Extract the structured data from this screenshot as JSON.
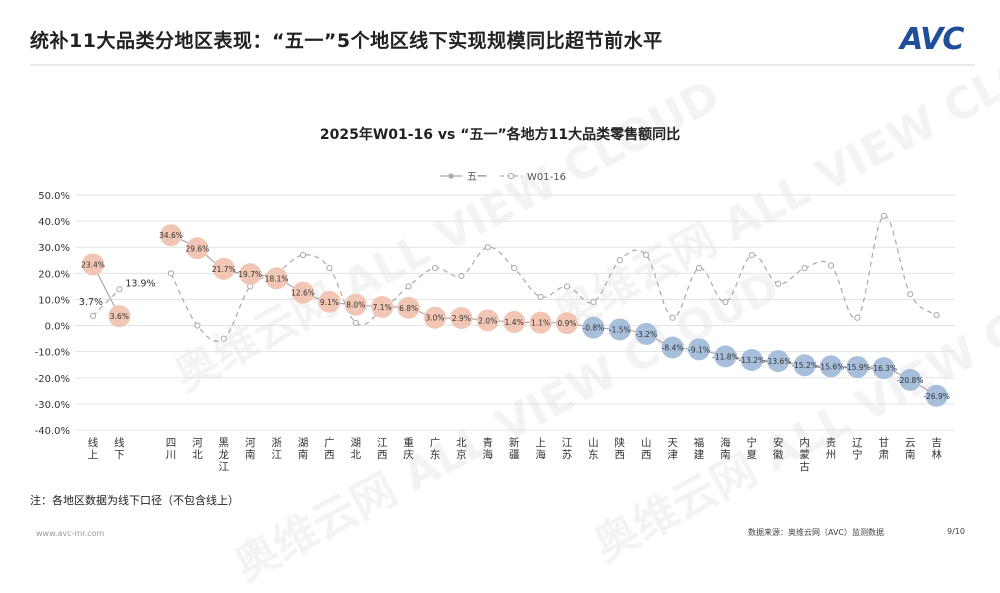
{
  "page": {
    "title": "统补11大品类分地区表现：“五一”5个地区线下实现规模同比超节前水平",
    "logo": "AVC",
    "watermark": "奥维云网 ALL VIEW CLOUD",
    "footnote": "注：各地区数据为线下口径（不包含线上）",
    "url": "www.avc-mr.com",
    "source": "数据来源：奥维云网（AVC）监测数据",
    "page_number": "9/10"
  },
  "colors": {
    "orange": "#f2c6b4",
    "blue": "#a7bfda",
    "line": "#a9a9a9",
    "grid": "#e3e3e3"
  },
  "chart_data": {
    "type": "line",
    "title": "2025年W01-16 vs “五一”各地方11大品类零售额同比",
    "ylim": [
      -40,
      50
    ],
    "yticks": [
      "50.0%",
      "40.0%",
      "30.0%",
      "20.0%",
      "10.0%",
      "0.0%",
      "-10.0%",
      "-20.0%",
      "-30.0%",
      "-40.0%"
    ],
    "legend": [
      {
        "name": "五一"
      },
      {
        "name": "W01-16"
      }
    ],
    "legend_position": "top-center",
    "groups": [
      {
        "categories": [
          "线上",
          "线下"
        ],
        "wuyi": [
          23.4,
          3.6
        ],
        "w01": [
          3.7,
          13.9
        ],
        "wuyi_labels": [
          "23.4%",
          "3.6%"
        ],
        "w01_labels": [
          "3.7%",
          "13.9%"
        ]
      },
      {
        "categories": [
          "四川",
          "河北",
          "黑龙江",
          "河南",
          "浙江",
          "湖南",
          "广西",
          "湖北",
          "江西",
          "重庆",
          "广东",
          "北京",
          "青海",
          "新疆",
          "上海",
          "江苏",
          "山东",
          "陕西",
          "山西",
          "天津",
          "福建",
          "海南",
          "宁夏",
          "安徽",
          "内蒙古",
          "贵州",
          "辽宁",
          "甘肃",
          "云南",
          "吉林"
        ],
        "wuyi": [
          34.6,
          29.6,
          21.7,
          19.7,
          18.1,
          12.6,
          9.1,
          8.0,
          7.1,
          6.8,
          3.0,
          2.9,
          2.0,
          1.4,
          1.1,
          0.9,
          -0.8,
          -1.5,
          -3.2,
          -8.4,
          -9.1,
          -11.8,
          -13.2,
          -13.6,
          -15.2,
          -15.6,
          -15.9,
          -16.3,
          -20.8,
          -26.9
        ],
        "w01": [
          20,
          0,
          -5,
          15,
          20,
          27,
          22,
          1,
          6,
          15,
          22,
          19,
          30,
          22,
          11,
          15,
          9,
          25,
          27,
          3,
          22,
          9,
          27,
          16,
          22,
          23,
          3,
          42,
          12,
          4
        ],
        "wuyi_labels": [
          "34.6%",
          "29.6%",
          "21.7%",
          "19.7%",
          "18.1%",
          "12.6%",
          "9.1%",
          "8.0%",
          "7.1%",
          "6.8%",
          "3.0%",
          "2.9%",
          "2.0%",
          "1.4%",
          "1.1%",
          "0.9%",
          "-0.8%",
          "-1.5%",
          "-3.2%",
          "-8.4%",
          "-9.1%",
          "-11.8%",
          "-13.2%",
          "-13.6%",
          "-15.2%",
          "-15.6%",
          "-15.9%",
          "-16.3%",
          "-20.8%",
          "-26.9%"
        ]
      }
    ]
  }
}
